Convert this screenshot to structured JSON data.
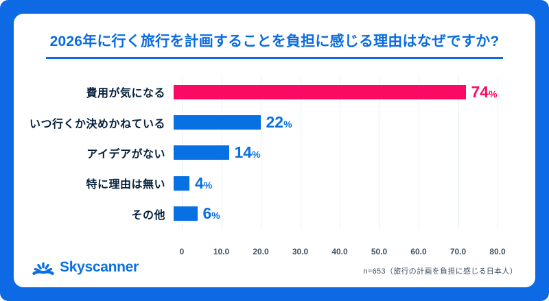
{
  "header": {
    "title": "2026年に行く旅行を計画することを負担に感じる理由はなぜですか?"
  },
  "chart_data": {
    "type": "bar",
    "orientation": "horizontal",
    "title": "2026年に行く旅行を計画することを負担に感じる理由はなぜですか?",
    "categories": [
      "費用が気になる",
      "いつ行くか決めかねている",
      "アイデアがない",
      "特に理由は無い",
      "その他"
    ],
    "values": [
      74,
      22,
      14,
      4,
      6
    ],
    "value_suffix": "%",
    "xlim": [
      0,
      80
    ],
    "x_ticks": [
      "0",
      "10.0",
      "20.0",
      "30.0",
      "40.0",
      "50.0",
      "60.0",
      "70.0",
      "80.0"
    ],
    "grid": true,
    "legend": "none",
    "highlight_index": 0
  },
  "footer": {
    "logo_text": "Skyscanner",
    "note": "n=653（旅行の計画を負担に感じる日本人）"
  },
  "colors": {
    "frame_blue": "#0d6ae4",
    "brand_blue": "#0770e3",
    "highlight_pink": "#fb0a63",
    "title_blue": "#0a6ce0",
    "text_navy": "#05203c",
    "axis_text": "#3d5266",
    "gridline": "#e8f1fc"
  }
}
